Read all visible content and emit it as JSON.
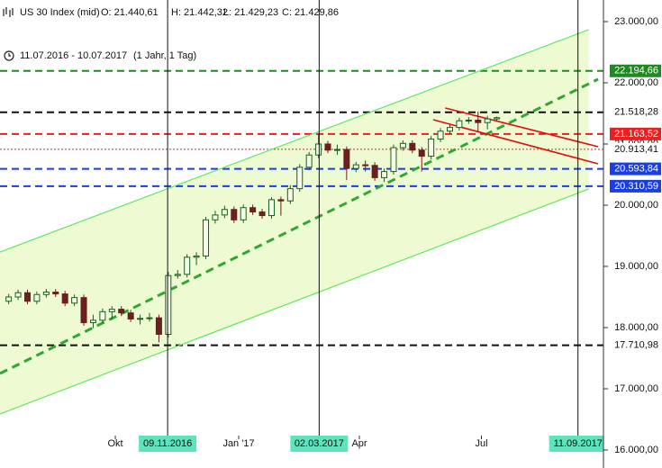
{
  "chart_data": {
    "type": "candlestick",
    "header": {
      "instrument": "US 30 Index (mid)",
      "open": "O: 21.440,61",
      "high": "H: 21.442,32",
      "low": "L: 21.429,23",
      "close": "C: 21.429,86"
    },
    "period": "11.07.2016 - 10.07.2017",
    "period_note": "(1 Jahr, 1 Tag)",
    "up_color": "#1b5e20",
    "up_fill": "#f4fbe8",
    "down_color": "#6b1f1f",
    "candles": [
      [
        "2016-07-11",
        18430,
        18550,
        18380,
        18500
      ],
      [
        "2016-07-18",
        18500,
        18620,
        18450,
        18570
      ],
      [
        "2016-07-25",
        18570,
        18620,
        18380,
        18430
      ],
      [
        "2016-08-01",
        18430,
        18590,
        18380,
        18540
      ],
      [
        "2016-08-08",
        18540,
        18630,
        18490,
        18580
      ],
      [
        "2016-08-15",
        18580,
        18630,
        18500,
        18550
      ],
      [
        "2016-08-22",
        18550,
        18600,
        18350,
        18400
      ],
      [
        "2016-08-29",
        18400,
        18540,
        18350,
        18490
      ],
      [
        "2016-09-05",
        18490,
        18540,
        18030,
        18080
      ],
      [
        "2016-09-12",
        18080,
        18210,
        17990,
        18120
      ],
      [
        "2016-09-19",
        18120,
        18310,
        18070,
        18260
      ],
      [
        "2016-09-26",
        18260,
        18350,
        18130,
        18300
      ],
      [
        "2016-10-03",
        18300,
        18350,
        18190,
        18240
      ],
      [
        "2016-10-10",
        18240,
        18290,
        18090,
        18140
      ],
      [
        "2016-10-17",
        18140,
        18210,
        18050,
        18150
      ],
      [
        "2016-10-24",
        18150,
        18240,
        18100,
        18160
      ],
      [
        "2016-10-31",
        18160,
        18210,
        17760,
        17890
      ],
      [
        "2016-11-07",
        17890,
        18910,
        17840,
        18850
      ],
      [
        "2016-11-14",
        18850,
        18940,
        18800,
        18870
      ],
      [
        "2016-11-21",
        18870,
        19200,
        18820,
        19150
      ],
      [
        "2016-11-28",
        19150,
        19230,
        19020,
        19170
      ],
      [
        "2016-12-05",
        19170,
        19810,
        19120,
        19760
      ],
      [
        "2016-12-12",
        19760,
        19910,
        19700,
        19840
      ],
      [
        "2016-12-19",
        19840,
        19990,
        19790,
        19930
      ],
      [
        "2016-12-26",
        19930,
        19980,
        19710,
        19760
      ],
      [
        "2017-01-02",
        19760,
        20010,
        19710,
        19960
      ],
      [
        "2017-01-09",
        19960,
        20010,
        19840,
        19890
      ],
      [
        "2017-01-16",
        19890,
        19940,
        19780,
        19830
      ],
      [
        "2017-01-23",
        19830,
        20130,
        19780,
        20090
      ],
      [
        "2017-01-30",
        20090,
        20140,
        19830,
        20070
      ],
      [
        "2017-02-06",
        20070,
        20330,
        20020,
        20270
      ],
      [
        "2017-02-13",
        20270,
        20670,
        20220,
        20620
      ],
      [
        "2017-02-20",
        20620,
        20870,
        20570,
        20820
      ],
      [
        "2017-02-27",
        20820,
        21170,
        20770,
        21000
      ],
      [
        "2017-03-06",
        21000,
        21050,
        20850,
        20900
      ],
      [
        "2017-03-13",
        20900,
        20990,
        20820,
        20910
      ],
      [
        "2017-03-20",
        20910,
        20960,
        20410,
        20600
      ],
      [
        "2017-03-27",
        20600,
        20710,
        20540,
        20660
      ],
      [
        "2017-04-03",
        20660,
        20730,
        20550,
        20650
      ],
      [
        "2017-04-10",
        20650,
        20700,
        20400,
        20450
      ],
      [
        "2017-04-17",
        20450,
        20600,
        20380,
        20550
      ],
      [
        "2017-04-24",
        20550,
        20990,
        20500,
        20940
      ],
      [
        "2017-05-01",
        20940,
        21060,
        20890,
        21010
      ],
      [
        "2017-05-08",
        21010,
        21060,
        20850,
        20900
      ],
      [
        "2017-05-15",
        20900,
        20950,
        20550,
        20800
      ],
      [
        "2017-05-22",
        20800,
        21130,
        20750,
        21080
      ],
      [
        "2017-05-29",
        21080,
        21260,
        21030,
        21210
      ],
      [
        "2017-06-05",
        21210,
        21320,
        21160,
        21270
      ],
      [
        "2017-06-12",
        21270,
        21430,
        21220,
        21380
      ],
      [
        "2017-06-19",
        21380,
        21440,
        21330,
        21390
      ],
      [
        "2017-06-26",
        21390,
        21530,
        21200,
        21350
      ],
      [
        "2017-07-03",
        21350,
        21460,
        21240,
        21410
      ],
      [
        "2017-07-10",
        21410,
        21450,
        21380,
        21430
      ]
    ],
    "xlim": [
      "2016-07-07",
      "2017-09-30"
    ],
    "xticks": [
      {
        "value": "2016-10-01",
        "label": "Okt"
      },
      {
        "value": "2017-01-01",
        "label": "Jan '17"
      },
      {
        "value": "2017-04-01",
        "label": "Apr"
      },
      {
        "value": "2017-07-01",
        "label": "Jul"
      }
    ],
    "ylim": [
      15926,
      23353
    ],
    "yticks": [
      {
        "value": 16000,
        "label": "16.000,00"
      },
      {
        "value": 17000,
        "label": "17.000,00"
      },
      {
        "value": 18000,
        "label": "18.000,00"
      },
      {
        "value": 19000,
        "label": "19.000,00"
      },
      {
        "value": 20000,
        "label": "20.000,00"
      },
      {
        "value": 21000,
        "label": "21.000,00"
      },
      {
        "value": 22000,
        "label": "22.000,00"
      },
      {
        "value": 23000,
        "label": "23.000,00"
      }
    ],
    "channel_fill": "#eefbd2",
    "trend_lines": [
      {
        "color": "#5ee85e",
        "width": 1.2,
        "dash": "none",
        "points": [
          [
            "2016-07-07",
            19235
          ],
          [
            "2017-09-19",
            22868
          ]
        ]
      },
      {
        "color": "#5ee85e",
        "width": 1.2,
        "dash": "none",
        "points": [
          [
            "2016-07-07",
            16588
          ],
          [
            "2017-09-19",
            20265
          ]
        ]
      },
      {
        "color": "#2ea82e",
        "width": 3,
        "dash": "9 6",
        "points": [
          [
            "2016-07-07",
            17250
          ],
          [
            "2017-09-26",
            22059
          ]
        ]
      },
      {
        "color": "#e01010",
        "width": 1.6,
        "dash": "none",
        "points": [
          [
            "2017-06-04",
            21588
          ],
          [
            "2017-09-26",
            20956
          ]
        ]
      },
      {
        "color": "#e01010",
        "width": 1.6,
        "dash": "none",
        "points": [
          [
            "2017-05-26",
            21397
          ],
          [
            "2017-09-26",
            20676
          ]
        ]
      }
    ],
    "levels": [
      {
        "value": 22194.66,
        "label": "22.194,66",
        "color": "#1f8a1f",
        "dash": "8 5",
        "width": 2,
        "box": true
      },
      {
        "value": 21518.28,
        "label": "21.518,28",
        "color": "#111111",
        "dash": "8 5",
        "width": 2,
        "box": false
      },
      {
        "value": 21163.52,
        "label": "21.163,52",
        "color": "#e82020",
        "dash": "8 5",
        "width": 2,
        "box": true
      },
      {
        "value": 20913.41,
        "label": "20.913,41",
        "color": "#c83030",
        "dash": "2 2",
        "width": 1,
        "box": false
      },
      {
        "value": 20593.84,
        "label": "20.593,84",
        "color": "#1a3ee0",
        "dash": "8 5",
        "width": 2,
        "box": true
      },
      {
        "value": 20310.59,
        "label": "20.310,59",
        "color": "#1a3ee0",
        "dash": "8 5",
        "width": 2,
        "box": true
      },
      {
        "value": 17710.98,
        "label": "17.710,98",
        "color": "#111111",
        "dash": "8 5",
        "width": 2,
        "box": false
      }
    ],
    "marker_color": "#5fe3bd",
    "markers": [
      {
        "date": "2016-11-09",
        "label": "09.11.2016"
      },
      {
        "date": "2017-03-02",
        "label": "02.03.2017"
      },
      {
        "date": "2017-09-11",
        "label": "11.09.2017"
      }
    ]
  }
}
